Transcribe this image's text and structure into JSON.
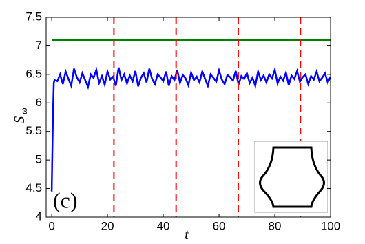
{
  "chart_data": {
    "type": "line",
    "xlabel": "t",
    "ylabel": "S",
    "ylabel_subscript": "ω",
    "annotation": "(c)",
    "xlim": [
      -2,
      100
    ],
    "ylim": [
      4,
      7.5
    ],
    "xticks": [
      0,
      20,
      40,
      60,
      80,
      100
    ],
    "yticks": [
      4,
      4.5,
      5,
      5.5,
      6,
      6.5,
      7,
      7.5
    ],
    "series": [
      {
        "color": "#0000ff",
        "x": [
          0,
          0.25,
          0.5,
          0.75,
          1,
          2,
          3,
          4,
          5,
          6,
          7,
          8,
          9,
          10,
          11,
          12,
          13,
          14,
          15,
          16,
          17,
          18,
          19,
          20,
          21,
          22,
          23,
          24,
          25,
          26,
          27,
          28,
          29,
          30,
          31,
          32,
          33,
          34,
          35,
          36,
          37,
          38,
          39,
          40,
          41,
          42,
          43,
          44,
          45,
          46,
          47,
          48,
          49,
          50,
          51,
          52,
          53,
          54,
          55,
          56,
          57,
          58,
          59,
          60,
          61,
          62,
          63,
          64,
          65,
          66,
          67,
          68,
          69,
          70,
          71,
          72,
          73,
          74,
          75,
          76,
          77,
          78,
          79,
          80,
          81,
          82,
          83,
          84,
          85,
          86,
          87,
          88,
          89,
          90,
          91,
          92,
          93,
          94,
          95,
          96,
          97,
          98,
          99,
          100
        ],
        "values": [
          4.45,
          5.2,
          5.9,
          6.35,
          6.4,
          6.38,
          6.5,
          6.33,
          6.55,
          6.42,
          6.3,
          6.6,
          6.45,
          6.36,
          6.52,
          6.4,
          6.28,
          6.5,
          6.44,
          6.58,
          6.35,
          6.47,
          6.32,
          6.55,
          6.41,
          6.46,
          6.3,
          6.62,
          6.4,
          6.5,
          6.34,
          6.48,
          6.38,
          6.56,
          6.29,
          6.44,
          6.52,
          6.36,
          6.6,
          6.42,
          6.33,
          6.5,
          6.45,
          6.38,
          6.55,
          6.3,
          6.47,
          6.4,
          6.58,
          6.35,
          6.49,
          6.43,
          6.31,
          6.53,
          6.4,
          6.46,
          6.36,
          6.55,
          6.42,
          6.3,
          6.5,
          6.44,
          6.37,
          6.57,
          6.41,
          6.33,
          6.49,
          6.45,
          6.39,
          6.56,
          6.32,
          6.47,
          6.42,
          6.52,
          6.35,
          6.44,
          6.3,
          6.55,
          6.4,
          6.48,
          6.36,
          6.5,
          6.43,
          6.58,
          6.34,
          6.46,
          6.39,
          6.53,
          6.31,
          6.48,
          6.42,
          6.56,
          6.37,
          6.45,
          6.5,
          6.33,
          6.47,
          6.41,
          6.55,
          6.38,
          6.44,
          6.52,
          6.36,
          6.46
        ]
      },
      {
        "color": "#008000",
        "x": [
          0,
          100
        ],
        "values": [
          7.1,
          7.1
        ]
      }
    ],
    "vlines": {
      "color": "#ff0000",
      "x": [
        22.3,
        44.6,
        66.9,
        89.2
      ]
    }
  }
}
